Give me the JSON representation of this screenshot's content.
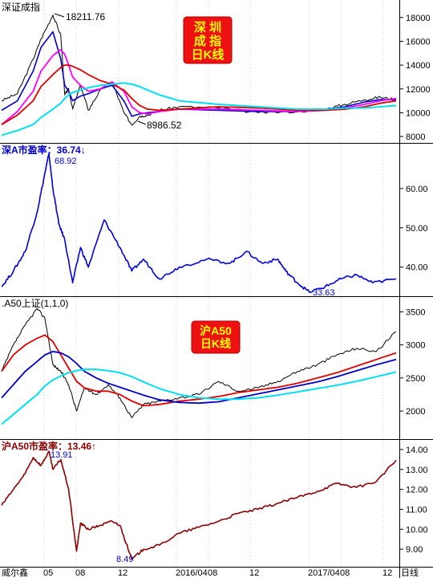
{
  "footer": {
    "brand": "威尔鑫",
    "axis_unit": "日线",
    "time_labels": [
      "05",
      "08",
      "12",
      "2016/04",
      "08",
      "12",
      "2017/04",
      "08",
      "12"
    ]
  },
  "panels": [
    {
      "id": "szse-index",
      "title": "深证成指",
      "badge_lines": [
        "深 圳",
        "成 指",
        "日K线"
      ],
      "y_ticks": [
        "18000",
        "16000",
        "14000",
        "12000",
        "10000",
        "8000"
      ],
      "annotations": {
        "high": "18211.76",
        "low": "8986.52"
      }
    },
    {
      "id": "sz-pe",
      "title": "深A市盈率：36.74↓",
      "y_ticks": [
        "60.00",
        "50.00",
        "40.00"
      ],
      "annotations": {
        "high": "68.92",
        "low": "33.63"
      }
    },
    {
      "id": "a50-index",
      "title": ".A50上证(1,1,0)",
      "badge_lines": [
        "沪A50",
        "日K线"
      ],
      "y_ticks": [
        "3500",
        "3000",
        "2500",
        "2000"
      ]
    },
    {
      "id": "a50-pe",
      "title": "沪A50市盈率：13.46↑",
      "y_ticks": [
        "14.00",
        "13.00",
        "12.00",
        "11.00",
        "10.00",
        "9.00"
      ],
      "annotations": {
        "high": "13.91",
        "low": "8.49"
      }
    }
  ],
  "colors": {
    "price": "#000000",
    "ma_magenta": "#ff00ff",
    "ma_red": "#e00000",
    "ma_cyan": "#00e0f0",
    "ma_blue": "#0000cc",
    "pe_blue": "#0000dd",
    "pe_darkred": "#8b0000",
    "badge_bg": "#ee1111",
    "badge_text": "#ffff00"
  },
  "chart_data": [
    {
      "type": "line",
      "title": "深证成指",
      "ylim": [
        7600,
        19200
      ],
      "x": [
        0,
        0.04,
        0.08,
        0.1,
        0.13,
        0.15,
        0.16,
        0.17,
        0.18,
        0.2,
        0.22,
        0.25,
        0.28,
        0.31,
        0.33,
        0.35,
        0.37,
        0.4,
        0.45,
        0.55,
        0.65,
        0.75,
        0.82,
        0.87,
        0.92,
        0.96,
        1.0
      ],
      "series": [
        {
          "name": "",
          "values": [
            11000,
            11600,
            14500,
            16200,
            18211,
            16500,
            11500,
            12000,
            10300,
            12300,
            10200,
            11900,
            12600,
            10000,
            8990,
            9700,
            9800,
            10200,
            10500,
            10400,
            10000,
            10100,
            10300,
            10700,
            11100,
            11300,
            11100
          ]
        },
        {
          "name": "",
          "values": [
            10200,
            11000,
            13500,
            15500,
            16800,
            14500,
            12300,
            11800,
            11000,
            11400,
            11600,
            12000,
            12300,
            11000,
            9700,
            9900,
            10000,
            10100,
            10300,
            10200,
            10100,
            10100,
            10300,
            10500,
            10900,
            11100,
            11100
          ]
        },
        {
          "name": "",
          "values": [
            9000,
            10100,
            11800,
            13500,
            14800,
            15300,
            14900,
            14000,
            13000,
            12300,
            11800,
            12000,
            12600,
            11800,
            10500,
            10000,
            9900,
            10100,
            10300,
            10300,
            10200,
            10100,
            10200,
            10400,
            10700,
            11000,
            11200
          ]
        },
        {
          "name": "",
          "values": [
            9000,
            9800,
            11000,
            12200,
            13200,
            13800,
            14000,
            14000,
            13900,
            13600,
            13200,
            12700,
            12400,
            11900,
            11200,
            10600,
            10300,
            10200,
            10300,
            10500,
            10400,
            10200,
            10200,
            10300,
            10500,
            10800,
            11000
          ]
        },
        {
          "name": "",
          "values": [
            8100,
            8500,
            9000,
            9600,
            10300,
            10800,
            11200,
            11500,
            11700,
            11900,
            12100,
            12300,
            12400,
            12500,
            12400,
            12200,
            11900,
            11500,
            11000,
            10700,
            10500,
            10300,
            10300,
            10400,
            10400,
            10500,
            10600
          ]
        }
      ]
    },
    {
      "type": "line",
      "title": "深A市盈率",
      "ylim": [
        33,
        71
      ],
      "x": [
        0,
        0.03,
        0.06,
        0.09,
        0.11,
        0.12,
        0.13,
        0.145,
        0.16,
        0.18,
        0.2,
        0.22,
        0.26,
        0.3,
        0.33,
        0.36,
        0.4,
        0.45,
        0.52,
        0.58,
        0.62,
        0.66,
        0.7,
        0.72,
        0.75,
        0.78,
        0.82,
        0.86,
        0.9,
        0.94,
        1.0
      ],
      "series": [
        {
          "name": "",
          "values": [
            35,
            39,
            44,
            54,
            64,
            68.92,
            60,
            51,
            47,
            36,
            45,
            40,
            52,
            45,
            39,
            42,
            37,
            40,
            42,
            41,
            44,
            41,
            42,
            39,
            36,
            33.63,
            35,
            37,
            38,
            36,
            37
          ]
        }
      ]
    },
    {
      "type": "line",
      "title": ".A50上证(1,1,0)",
      "ylim": [
        1600,
        3700
      ],
      "x": [
        0,
        0.03,
        0.06,
        0.09,
        0.11,
        0.13,
        0.15,
        0.17,
        0.19,
        0.21,
        0.24,
        0.27,
        0.3,
        0.33,
        0.36,
        0.4,
        0.45,
        0.5,
        0.55,
        0.6,
        0.65,
        0.7,
        0.75,
        0.8,
        0.85,
        0.9,
        0.95,
        1.0
      ],
      "series": [
        {
          "name": "",
          "values": [
            2600,
            3000,
            3300,
            3550,
            3400,
            2700,
            2600,
            2400,
            2000,
            2350,
            2250,
            2400,
            2200,
            1900,
            2100,
            2150,
            2200,
            2250,
            2450,
            2300,
            2350,
            2450,
            2600,
            2700,
            2850,
            2950,
            2900,
            3200
          ]
        },
        {
          "name": "",
          "values": [
            2600,
            2850,
            3000,
            3100,
            3150,
            3050,
            2850,
            2650,
            2450,
            2350,
            2300,
            2300,
            2250,
            2150,
            2080,
            2100,
            2150,
            2180,
            2220,
            2280,
            2320,
            2360,
            2420,
            2500,
            2580,
            2680,
            2780,
            2880
          ]
        },
        {
          "name": "",
          "values": [
            2200,
            2400,
            2600,
            2750,
            2850,
            2900,
            2880,
            2820,
            2720,
            2600,
            2500,
            2420,
            2360,
            2300,
            2240,
            2170,
            2130,
            2120,
            2140,
            2200,
            2260,
            2320,
            2380,
            2440,
            2520,
            2610,
            2700,
            2780
          ]
        },
        {
          "name": "",
          "values": [
            1800,
            1950,
            2100,
            2250,
            2380,
            2470,
            2530,
            2580,
            2610,
            2630,
            2630,
            2610,
            2580,
            2520,
            2440,
            2340,
            2250,
            2200,
            2180,
            2180,
            2200,
            2240,
            2290,
            2340,
            2390,
            2450,
            2520,
            2590
          ]
        }
      ]
    },
    {
      "type": "line",
      "title": "沪A50市盈率",
      "ylim": [
        8.2,
        14.4
      ],
      "x": [
        0,
        0.03,
        0.06,
        0.08,
        0.1,
        0.12,
        0.13,
        0.15,
        0.17,
        0.19,
        0.2,
        0.22,
        0.25,
        0.28,
        0.3,
        0.33,
        0.36,
        0.4,
        0.45,
        0.5,
        0.55,
        0.6,
        0.65,
        0.7,
        0.75,
        0.8,
        0.85,
        0.9,
        0.95,
        1.0
      ],
      "series": [
        {
          "name": "",
          "values": [
            11.2,
            12.0,
            12.8,
            13.6,
            13.2,
            13.91,
            13.0,
            13.5,
            12.0,
            8.9,
            10.3,
            10.0,
            10.2,
            10.4,
            10.2,
            8.49,
            9.0,
            9.2,
            9.8,
            10.1,
            10.4,
            10.8,
            11.0,
            11.3,
            11.6,
            11.9,
            12.3,
            12.1,
            12.4,
            13.46
          ]
        }
      ]
    }
  ]
}
